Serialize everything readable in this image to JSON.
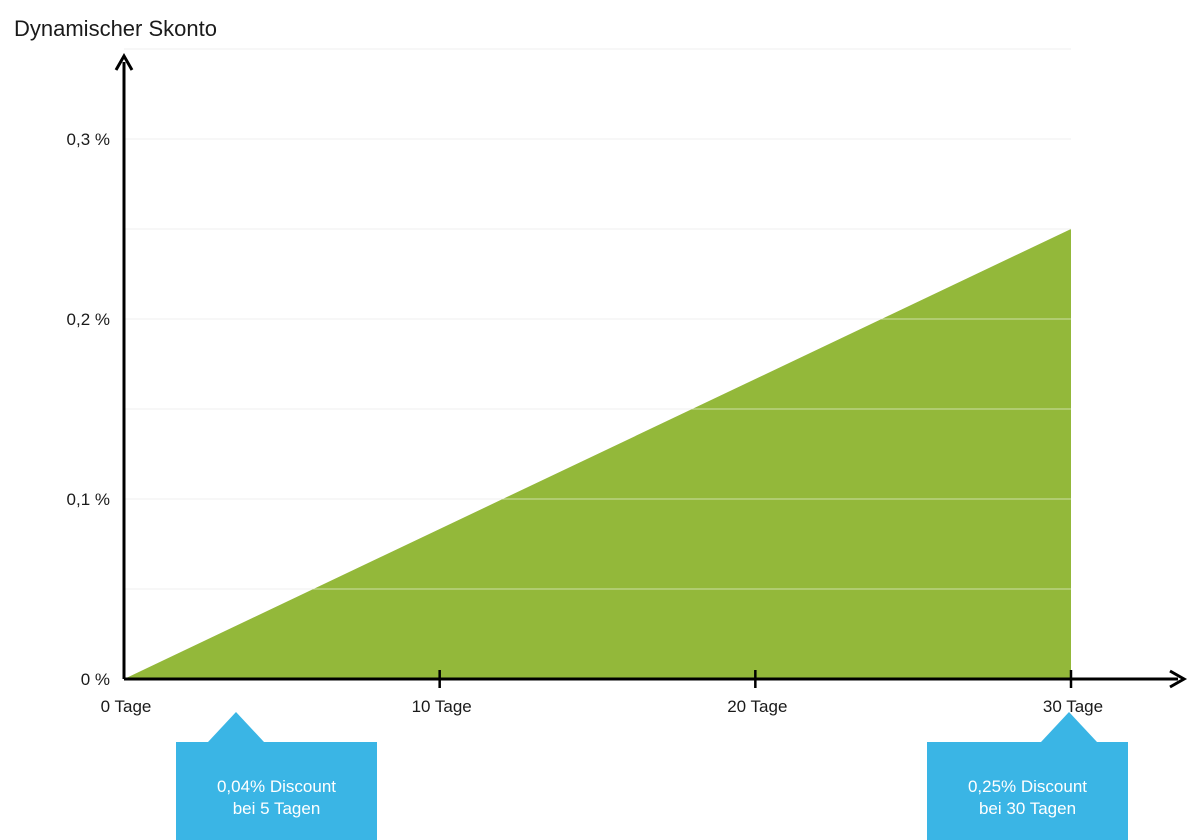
{
  "chart_data": {
    "type": "area",
    "title": "Dynamischer Skonto",
    "xlabel": "",
    "ylabel": "",
    "x_unit_label": "Tage",
    "xlim": [
      0,
      30
    ],
    "ylim": [
      0,
      0.35
    ],
    "x_ticks": [
      0,
      10,
      20,
      30
    ],
    "x_tick_labels": [
      "0 Tage",
      "10 Tage",
      "20 Tage",
      "30 Tage"
    ],
    "y_ticks": [
      0,
      0.1,
      0.2,
      0.3
    ],
    "y_tick_labels": [
      "0 %",
      "0,1 %",
      "0,2 %",
      "0,3 %"
    ],
    "gridlines_y": [
      0.05,
      0.1,
      0.15,
      0.2,
      0.25,
      0.3,
      0.35
    ],
    "grid": true,
    "series": [
      {
        "x": [
          0,
          30
        ],
        "y": [
          0,
          0.25
        ],
        "color": "#93b83a"
      }
    ],
    "annotations": [
      {
        "lines": [
          "0,04% Discount",
          "bei 5 Tagen"
        ],
        "x": 5,
        "color": "#3ab5e5"
      },
      {
        "lines": [
          "0,25% Discount",
          "bei 30 Tagen"
        ],
        "x": 30,
        "color": "#3ab5e5"
      }
    ]
  }
}
